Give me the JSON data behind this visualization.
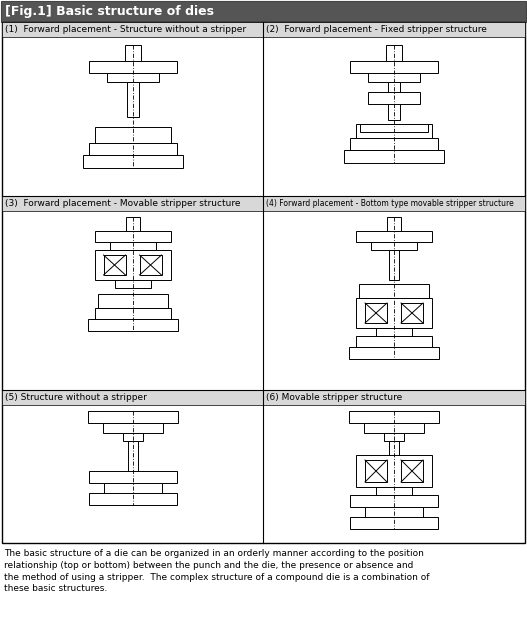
{
  "title": "[Fig.1] Basic structure of dies",
  "title_bg": "#555555",
  "title_color": "#ffffff",
  "cell_labels": [
    "(1)  Forward placement - Structure without a stripper",
    "(2)  Forward placement - Fixed stripper structure",
    "(3)  Forward placement - Movable stripper structure",
    "(4) Forward placement - Bottom type movable stripper structure",
    "(5) Structure without a stripper",
    "(6) Movable stripper structure"
  ],
  "footer_text": "The basic structure of a die can be organized in an orderly manner according to the position\nrelationship (top or bottom) between the punch and the die, the presence or absence and\nthe method of using a stripper.  The complex structure of a compound die is a combination of\nthese basic structures.",
  "lc": "#000000",
  "bg": "#ffffff",
  "label_bg": "#d8d8d8",
  "figw": 5.27,
  "figh": 6.3,
  "dpi": 100
}
